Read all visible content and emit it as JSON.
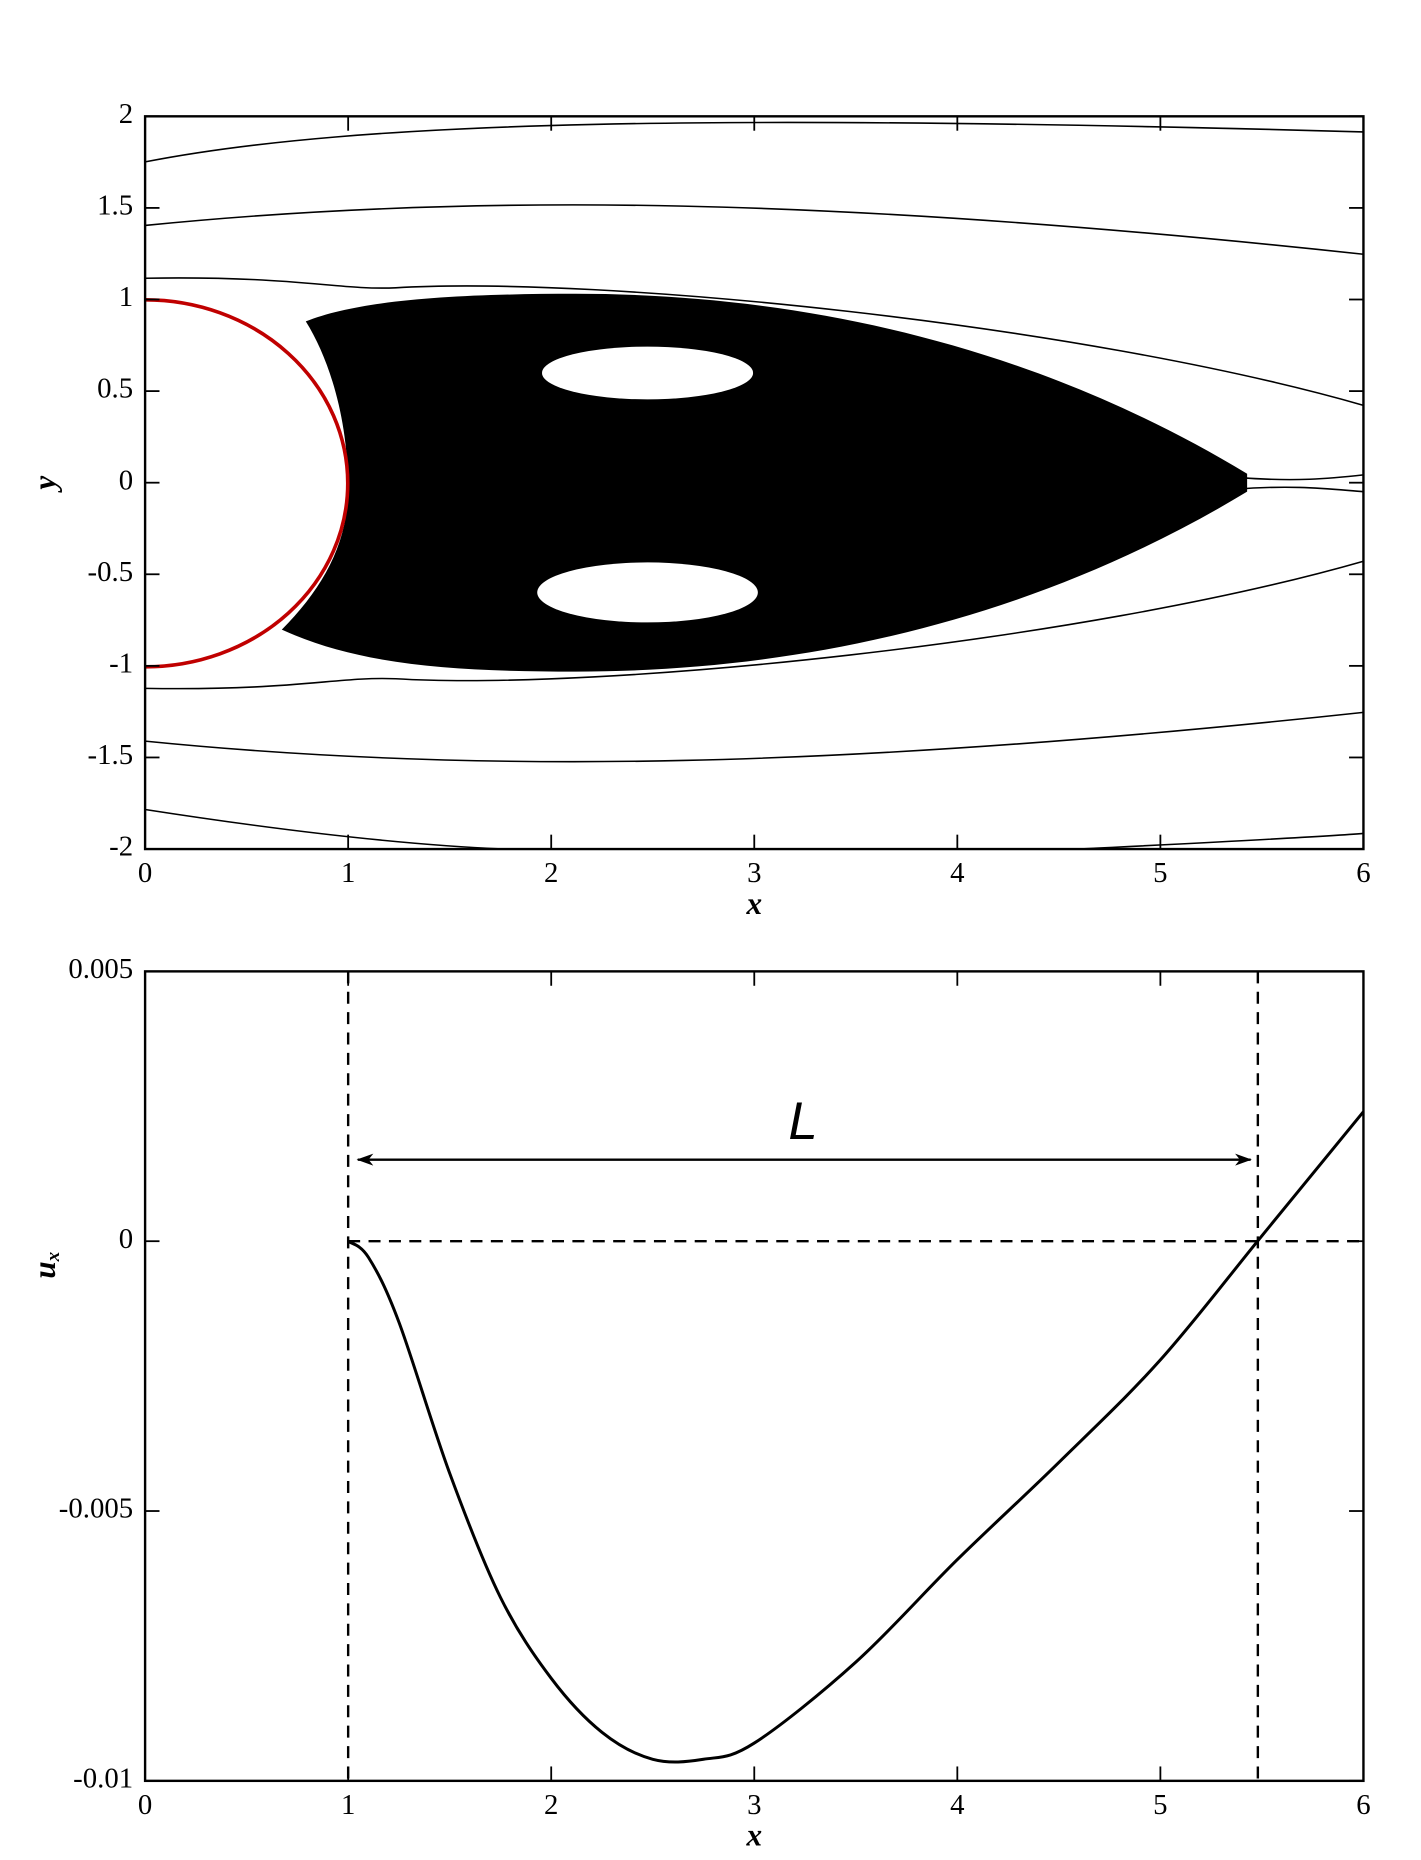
{
  "chart_data": [
    {
      "type": "streamlines",
      "xlabel": "x",
      "ylabel": "y",
      "xlim": [
        0,
        6
      ],
      "ylim": [
        -2,
        2
      ],
      "xticks": [
        0,
        1,
        2,
        3,
        4,
        5,
        6
      ],
      "yticks": [
        -2,
        -1.5,
        -1,
        -0.5,
        0,
        0.5,
        1,
        1.5,
        2
      ]
    },
    {
      "type": "line",
      "xlabel": "x",
      "ylabel": "u",
      "ylabel_subscript": "x",
      "x": [
        1,
        1.1,
        1.25,
        1.5,
        1.75,
        2,
        2.25,
        2.5,
        2.75,
        3,
        3.5,
        4,
        4.5,
        5,
        5.5,
        6
      ],
      "values": [
        0,
        -0.0003,
        -0.0015,
        -0.0043,
        -0.0066,
        -0.0081,
        -0.0091,
        -0.0096,
        -0.0096,
        -0.0093,
        -0.0078,
        -0.0059,
        -0.0041,
        -0.0022,
        0.0001,
        0.0024
      ],
      "color": "#000000",
      "xlim": [
        0,
        6
      ],
      "ylim": [
        -0.01,
        0.005
      ],
      "xticks": [
        0,
        1,
        2,
        3,
        4,
        5,
        6
      ],
      "yticks": [
        -0.01,
        -0.005,
        0,
        0.005
      ],
      "vlines": [
        1,
        5.48
      ],
      "hline": 0,
      "annotation": {
        "text": "L",
        "x_start": 1,
        "x_end": 5.48
      }
    }
  ]
}
